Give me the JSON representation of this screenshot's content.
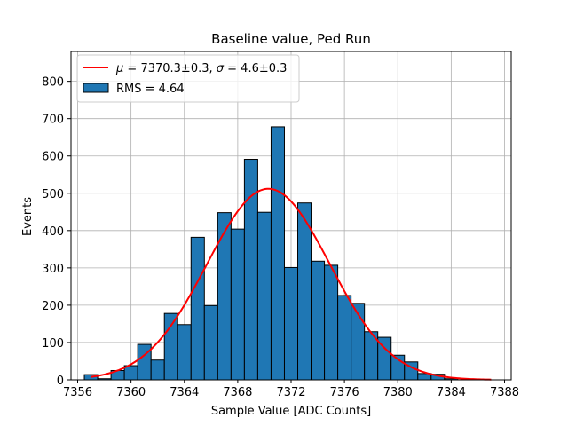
{
  "chart_data": {
    "type": "bar",
    "title": "Baseline value, Ped Run",
    "xlabel": "Sample Value [ADC Counts]",
    "ylabel": "Events",
    "xlim": [
      7355.5,
      7388.5
    ],
    "ylim": [
      0,
      880
    ],
    "grid": true,
    "legend_position": "top-left",
    "xticks": [
      7356,
      7360,
      7364,
      7368,
      7372,
      7376,
      7380,
      7384,
      7388
    ],
    "yticks": [
      0,
      100,
      200,
      300,
      400,
      500,
      600,
      700,
      800
    ],
    "histogram": {
      "name": "RMS = 4.64",
      "color": "#1f77b4",
      "edge_color": "#000000",
      "bins": [
        {
          "x0": 7356.5,
          "x1": 7357.5,
          "count": 14
        },
        {
          "x0": 7357.5,
          "x1": 7358.5,
          "count": 3
        },
        {
          "x0": 7358.5,
          "x1": 7359.5,
          "count": 25
        },
        {
          "x0": 7359.5,
          "x1": 7360.5,
          "count": 38
        },
        {
          "x0": 7360.5,
          "x1": 7361.5,
          "count": 95
        },
        {
          "x0": 7361.5,
          "x1": 7362.5,
          "count": 53
        },
        {
          "x0": 7362.5,
          "x1": 7363.5,
          "count": 178
        },
        {
          "x0": 7363.5,
          "x1": 7364.5,
          "count": 148
        },
        {
          "x0": 7364.5,
          "x1": 7365.5,
          "count": 382
        },
        {
          "x0": 7365.5,
          "x1": 7366.5,
          "count": 199
        },
        {
          "x0": 7366.5,
          "x1": 7367.5,
          "count": 448
        },
        {
          "x0": 7367.5,
          "x1": 7368.5,
          "count": 404
        },
        {
          "x0": 7368.5,
          "x1": 7369.5,
          "count": 591
        },
        {
          "x0": 7369.5,
          "x1": 7370.5,
          "count": 449
        },
        {
          "x0": 7370.5,
          "x1": 7371.5,
          "count": 678
        },
        {
          "x0": 7371.5,
          "x1": 7372.5,
          "count": 301
        },
        {
          "x0": 7372.5,
          "x1": 7373.5,
          "count": 474
        },
        {
          "x0": 7373.5,
          "x1": 7374.5,
          "count": 318
        },
        {
          "x0": 7374.5,
          "x1": 7375.5,
          "count": 307
        },
        {
          "x0": 7375.5,
          "x1": 7376.5,
          "count": 226
        },
        {
          "x0": 7376.5,
          "x1": 7377.5,
          "count": 205
        },
        {
          "x0": 7377.5,
          "x1": 7378.5,
          "count": 129
        },
        {
          "x0": 7378.5,
          "x1": 7379.5,
          "count": 114
        },
        {
          "x0": 7379.5,
          "x1": 7380.5,
          "count": 66
        },
        {
          "x0": 7380.5,
          "x1": 7381.5,
          "count": 48
        },
        {
          "x0": 7381.5,
          "x1": 7382.5,
          "count": 17
        },
        {
          "x0": 7382.5,
          "x1": 7383.5,
          "count": 15
        },
        {
          "x0": 7383.5,
          "x1": 7384.5,
          "count": 3
        }
      ]
    },
    "fit": {
      "name_parts": {
        "mu_symbol": "μ",
        "mu_text": " = 7370.3±0.3, ",
        "sigma_symbol": "σ",
        "sigma_text": " = 4.6±0.3"
      },
      "type": "gaussian",
      "mu": 7370.3,
      "sigma": 4.6,
      "amplitude": 512,
      "x_range": [
        7357,
        7387
      ],
      "color": "#ff0000"
    }
  }
}
